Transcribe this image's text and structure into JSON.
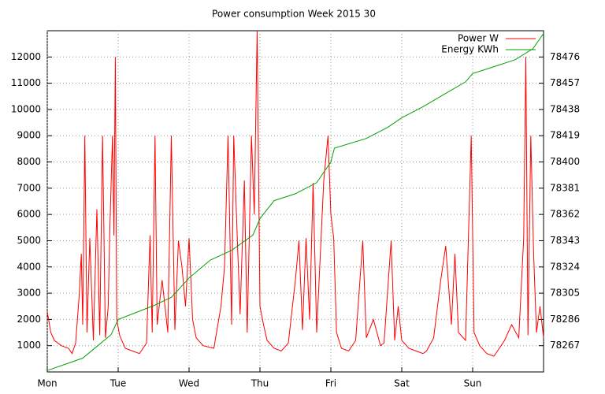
{
  "chart_data": {
    "type": "line",
    "title": "Power consumption Week 2015 30",
    "xlim": [
      0,
      7
    ],
    "xticks": [
      {
        "value": 0,
        "label": "Mon"
      },
      {
        "value": 1,
        "label": "Tue"
      },
      {
        "value": 2,
        "label": "Wed"
      },
      {
        "value": 3,
        "label": "Thu"
      },
      {
        "value": 4,
        "label": "Fri"
      },
      {
        "value": 5,
        "label": "Sat"
      },
      {
        "value": 6,
        "label": "Sun"
      }
    ],
    "ylim": [
      0,
      13000
    ],
    "yticks": [
      1000,
      2000,
      3000,
      4000,
      5000,
      6000,
      7000,
      8000,
      9000,
      10000,
      11000,
      12000
    ],
    "y2lim": [
      78248,
      78495
    ],
    "y2ticks": [
      78267,
      78286,
      78305,
      78324,
      78343,
      78362,
      78381,
      78400,
      78419,
      78438,
      78457,
      78476
    ],
    "grid": true,
    "legend": "top-right",
    "series": [
      {
        "name": "Power W",
        "color": "#ff0000",
        "x": [
          0,
          0.05,
          0.1,
          0.2,
          0.3,
          0.35,
          0.4,
          0.45,
          0.48,
          0.5,
          0.53,
          0.56,
          0.6,
          0.65,
          0.7,
          0.74,
          0.78,
          0.82,
          0.86,
          0.88,
          0.92,
          0.94,
          0.96,
          0.98,
          1.02,
          1.1,
          1.2,
          1.3,
          1.4,
          1.45,
          1.48,
          1.52,
          1.55,
          1.62,
          1.7,
          1.75,
          1.8,
          1.85,
          1.9,
          1.95,
          2.0,
          2.05,
          2.1,
          2.2,
          2.35,
          2.45,
          2.5,
          2.55,
          2.6,
          2.63,
          2.68,
          2.72,
          2.78,
          2.82,
          2.88,
          2.92,
          2.96,
          3.0,
          3.05,
          3.1,
          3.2,
          3.3,
          3.4,
          3.5,
          3.55,
          3.6,
          3.65,
          3.7,
          3.75,
          3.8,
          3.9,
          3.96,
          4.0,
          4.04,
          4.08,
          4.15,
          4.25,
          4.35,
          4.45,
          4.5,
          4.6,
          4.7,
          4.75,
          4.85,
          4.9,
          4.95,
          5.0,
          5.1,
          5.2,
          5.3,
          5.35,
          5.45,
          5.55,
          5.62,
          5.7,
          5.75,
          5.8,
          5.9,
          5.98,
          6.02,
          6.1,
          6.2,
          6.3,
          6.35,
          6.45,
          6.55,
          6.65,
          6.72,
          6.75,
          6.78,
          6.82,
          6.86,
          6.9,
          6.95,
          7.0
        ],
        "values": [
          2300,
          1500,
          1200,
          1000,
          900,
          700,
          1100,
          2900,
          4500,
          1800,
          9000,
          1500,
          5100,
          1200,
          6200,
          1400,
          9000,
          1300,
          2500,
          5200,
          9000,
          5200,
          12000,
          2000,
          1400,
          900,
          800,
          700,
          1100,
          5200,
          1500,
          9000,
          1800,
          3500,
          1500,
          9000,
          1600,
          5000,
          4000,
          2500,
          5100,
          2000,
          1300,
          1000,
          900,
          2500,
          4000,
          9000,
          1800,
          9000,
          5100,
          2200,
          7300,
          1500,
          9000,
          6000,
          13000,
          2500,
          1800,
          1200,
          900,
          800,
          1100,
          3500,
          5000,
          1600,
          5100,
          2000,
          7200,
          1500,
          7300,
          9000,
          6000,
          5100,
          1500,
          900,
          800,
          1200,
          5000,
          1300,
          2000,
          1000,
          1100,
          5000,
          1200,
          2500,
          1200,
          900,
          800,
          700,
          800,
          1300,
          3500,
          4800,
          1800,
          4500,
          1500,
          1200,
          9000,
          1500,
          1000,
          700,
          600,
          800,
          1200,
          1800,
          1300,
          5100,
          12000,
          1400,
          9000,
          4500,
          1500,
          2500,
          1300
        ]
      },
      {
        "name": "Energy KWh",
        "color": "#00a000",
        "axis": "y2",
        "x": [
          0,
          0.5,
          0.9,
          1.0,
          1.5,
          1.75,
          2.0,
          2.3,
          2.6,
          2.9,
          3.0,
          3.2,
          3.5,
          3.8,
          4.0,
          4.05,
          4.5,
          4.8,
          5.0,
          5.3,
          5.6,
          5.9,
          6.0,
          6.3,
          6.6,
          6.85,
          7.0
        ],
        "values": [
          78249,
          78258,
          78275,
          78286,
          78296,
          78302,
          78316,
          78329,
          78336,
          78347,
          78359,
          78372,
          78377,
          78385,
          78400,
          78410,
          78417,
          78425,
          78432,
          78440,
          78449,
          78458,
          78464,
          78469,
          78474,
          78482,
          78493
        ]
      }
    ]
  }
}
